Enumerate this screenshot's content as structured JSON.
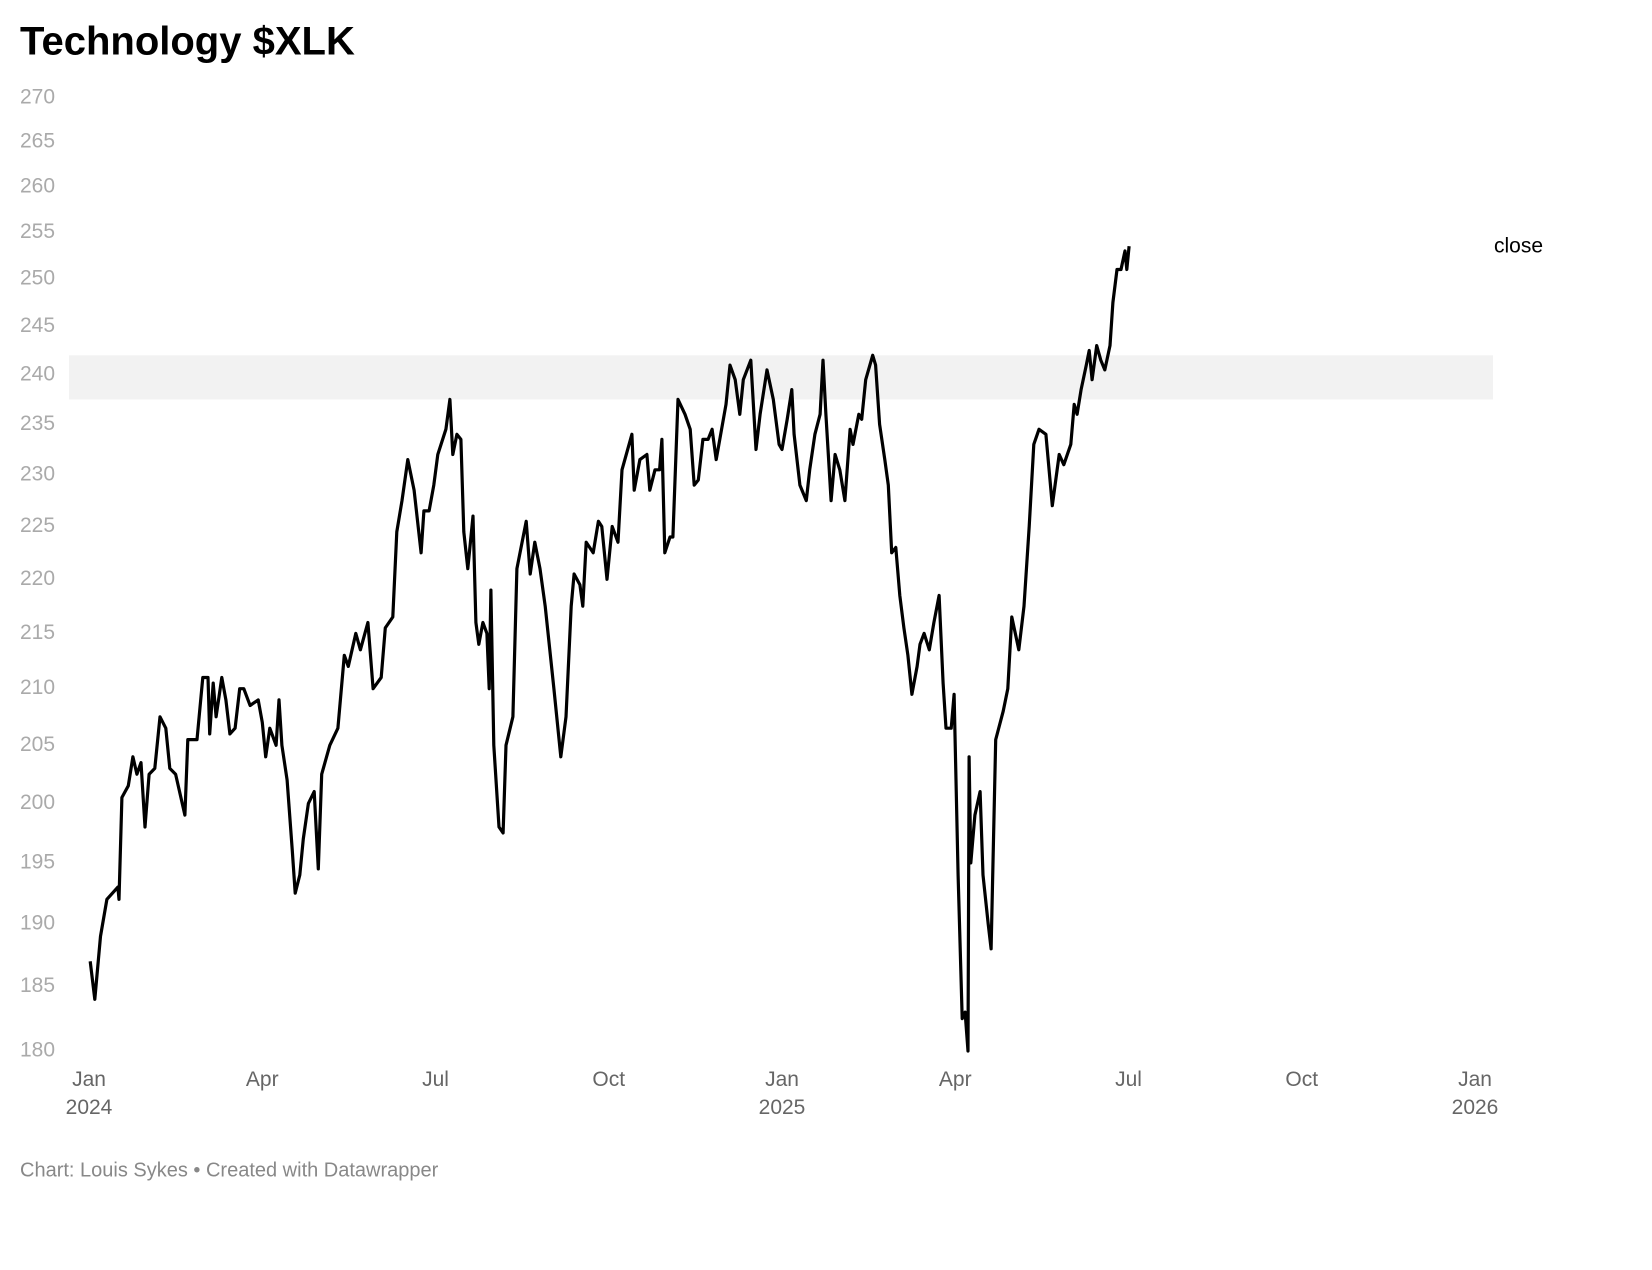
{
  "chart_data": {
    "type": "line",
    "title": "Technology $XLK",
    "source": "Chart: Louis Sykes • Created with Datawrapper",
    "ylog": true,
    "ylim": [
      180,
      270
    ],
    "yticks": [
      180,
      185,
      190,
      195,
      200,
      205,
      210,
      215,
      220,
      225,
      230,
      235,
      240,
      245,
      250,
      255,
      260,
      265,
      270
    ],
    "xlim": [
      0,
      24
    ],
    "xticks": [
      {
        "value": 0,
        "label": "Jan 2024"
      },
      {
        "value": 3,
        "label": "Apr"
      },
      {
        "value": 6,
        "label": "Jul"
      },
      {
        "value": 9,
        "label": "Oct"
      },
      {
        "value": 12,
        "label": "Jan 2025"
      },
      {
        "value": 15,
        "label": "Apr"
      },
      {
        "value": 18,
        "label": "Jul"
      },
      {
        "value": 21,
        "label": "Oct"
      },
      {
        "value": 24,
        "label": "Jan 2026"
      }
    ],
    "highlight_range": [
      237.5,
      242
    ],
    "x": [
      0.02,
      0.1,
      0.2,
      0.31,
      0.5,
      0.52,
      0.57,
      0.68,
      0.76,
      0.83,
      0.9,
      0.97,
      1.04,
      1.14,
      1.23,
      1.33,
      1.4,
      1.5,
      1.66,
      1.71,
      1.87,
      1.97,
      2.06,
      2.09,
      2.15,
      2.2,
      2.3,
      2.37,
      2.44,
      2.53,
      2.61,
      2.68,
      2.79,
      2.93,
      3.0,
      3.06,
      3.13,
      3.24,
      3.29,
      3.34,
      3.43,
      3.52,
      3.57,
      3.65,
      3.71,
      3.8,
      3.9,
      3.97,
      4.03,
      4.17,
      4.31,
      4.42,
      4.49,
      4.62,
      4.7,
      4.83,
      4.92,
      5.06,
      5.13,
      5.26,
      5.33,
      5.42,
      5.52,
      5.63,
      5.75,
      5.8,
      5.89,
      5.97,
      6.04,
      6.18,
      6.25,
      6.3,
      6.37,
      6.44,
      6.49,
      6.56,
      6.65,
      6.7,
      6.75,
      6.82,
      6.89,
      6.93,
      6.96,
      7.01,
      7.1,
      7.17,
      7.22,
      7.34,
      7.41,
      7.57,
      7.64,
      7.72,
      7.81,
      7.9,
      8.05,
      8.17,
      8.26,
      8.35,
      8.4,
      8.5,
      8.55,
      8.61,
      8.73,
      8.82,
      8.88,
      8.97,
      9.06,
      9.16,
      9.23,
      9.4,
      9.44,
      9.54,
      9.66,
      9.71,
      9.8,
      9.88,
      9.92,
      9.97,
      10.06,
      10.11,
      10.2,
      10.32,
      10.41,
      10.48,
      10.55,
      10.63,
      10.72,
      10.79,
      10.86,
      11.03,
      11.1,
      11.19,
      11.27,
      11.33,
      11.46,
      11.55,
      11.62,
      11.74,
      11.85,
      11.95,
      12.0,
      12.09,
      12.17,
      12.21,
      12.31,
      12.42,
      12.48,
      12.57,
      12.66,
      12.71,
      12.76,
      12.85,
      12.92,
      13.0,
      13.09,
      13.18,
      13.23,
      13.33,
      13.38,
      13.45,
      13.57,
      13.62,
      13.69,
      13.78,
      13.84,
      13.9,
      13.97,
      14.04,
      14.11,
      14.18,
      14.25,
      14.34,
      14.39,
      14.46,
      14.55,
      14.63,
      14.72,
      14.79,
      14.84,
      14.93,
      14.98,
      15.05,
      15.12,
      15.17,
      15.22,
      15.24,
      15.27,
      15.34,
      15.43,
      15.48,
      15.57,
      15.62,
      15.7,
      15.83,
      15.91,
      15.98,
      16.1,
      16.19,
      16.28,
      16.36,
      16.45,
      16.57,
      16.64,
      16.68,
      16.8,
      16.88,
      17.0,
      17.06,
      17.11,
      17.18,
      17.27,
      17.32,
      17.37,
      17.45,
      17.52,
      17.59,
      17.68,
      17.73,
      17.8,
      17.87,
      17.94,
      17.97,
      18.01
    ],
    "series": [
      {
        "name": "close",
        "color": "#000000",
        "values": [
          187,
          184,
          189,
          192,
          193,
          192,
          200.5,
          201.5,
          204,
          202.5,
          203.5,
          198,
          202.5,
          203,
          207.5,
          206.5,
          203,
          202.5,
          199,
          205.5,
          205.5,
          211,
          211,
          206,
          210.5,
          207.5,
          211,
          209,
          206,
          206.5,
          210,
          210,
          208.5,
          209,
          207,
          204,
          206.5,
          205,
          209,
          205,
          202,
          196,
          192.5,
          194,
          197,
          200,
          201,
          194.5,
          202.5,
          205,
          206.5,
          213,
          212,
          215,
          213.5,
          216,
          210,
          211,
          215.5,
          216.5,
          224.5,
          227.5,
          231.5,
          228.5,
          222.5,
          226.5,
          226.5,
          229,
          232,
          234.5,
          237.5,
          232,
          234,
          233.5,
          224.5,
          221,
          226,
          216,
          214,
          216,
          215,
          210,
          219,
          205,
          198,
          197.5,
          205,
          207.5,
          221,
          225.5,
          220.5,
          223.5,
          221,
          217.5,
          210,
          204,
          207.5,
          217.5,
          220.5,
          219.5,
          217.5,
          223.5,
          222.5,
          225.5,
          225,
          220,
          225,
          223.5,
          230.5,
          234,
          228.5,
          231.5,
          232,
          228.5,
          230.5,
          230.5,
          233.5,
          222.5,
          224,
          224,
          237.5,
          236,
          234.5,
          229,
          229.5,
          233.5,
          233.5,
          234.5,
          231.5,
          237,
          241,
          239.5,
          236,
          239.5,
          241.5,
          232.5,
          236,
          240.5,
          237.5,
          233,
          232.5,
          235.5,
          238.5,
          234,
          229,
          227.5,
          230.5,
          234,
          236,
          241.5,
          236,
          227.5,
          232,
          230.5,
          227.5,
          234.5,
          233,
          236,
          235.5,
          239.5,
          242,
          241,
          235,
          231.5,
          229,
          222.5,
          223,
          218.5,
          215.5,
          213,
          209.5,
          212,
          214,
          215,
          213.5,
          216,
          218.5,
          210.5,
          206.5,
          206.5,
          209.5,
          194,
          182.5,
          183,
          180,
          204,
          195,
          199,
          201,
          194,
          190,
          188,
          205.5,
          208,
          210,
          216.5,
          213.5,
          217.5,
          225,
          233,
          234.5,
          234,
          229.5,
          227,
          232,
          231,
          233,
          237,
          236,
          238.5,
          241,
          242.5,
          239.5,
          243,
          241.5,
          240.5,
          243,
          247.5,
          251,
          251,
          253,
          251,
          253.5
        ]
      }
    ]
  }
}
